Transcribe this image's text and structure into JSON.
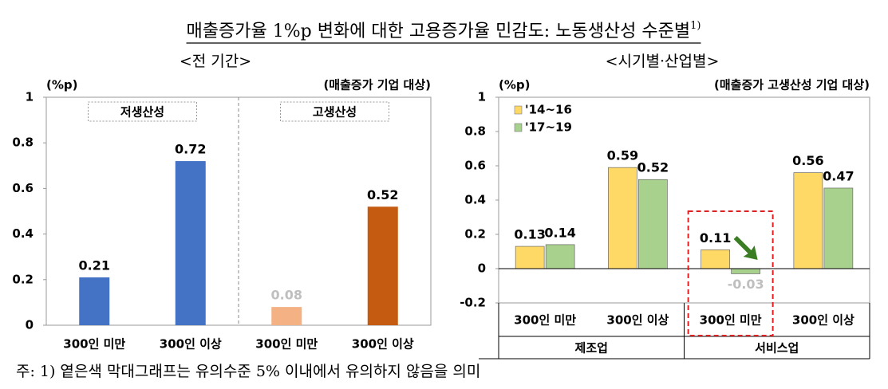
{
  "title": "매출증가율 1%p 변화에 대한 고용증가율 민감도: 노동생산성 수준별",
  "title_note": "1)",
  "footnote": "주: 1) 옅은색 막대그래프는 유의수준 5% 이내에서 유의하지 않음을 의미",
  "chart_data": [
    {
      "type": "bar",
      "subtitle": "<전 기간>",
      "ylabel": "(%p)",
      "note": "(매출증가 기업 대상)",
      "groups": [
        "저생산성",
        "고생산성"
      ],
      "categories": [
        "300인 미만",
        "300인 이상",
        "300인 미만",
        "300인 이상"
      ],
      "values": [
        0.21,
        0.72,
        0.08,
        0.52
      ],
      "colors": [
        "#4472c4",
        "#4472c4",
        "#f4b183",
        "#c55a11"
      ],
      "label_colors": [
        "#000000",
        "#000000",
        "#bfbfbf",
        "#000000"
      ],
      "ylim": [
        0,
        1
      ],
      "yticks": [
        0,
        0.2,
        0.4,
        0.6,
        0.8,
        1
      ]
    },
    {
      "type": "grouped_bar",
      "subtitle": "<시기별·산업별>",
      "ylabel": "(%p)",
      "note": "(매출증가 고생산성 기업 대상)",
      "groups": [
        "제조업",
        "서비스업"
      ],
      "categories": [
        "300인 미만",
        "300인 이상",
        "300인 미만",
        "300인 이상"
      ],
      "series": [
        {
          "name": "'14~16",
          "color": "#ffd966",
          "values": [
            0.13,
            0.59,
            0.11,
            0.56
          ],
          "label_colors": [
            "#000000",
            "#000000",
            "#000000",
            "#000000"
          ]
        },
        {
          "name": "'17~19",
          "color": "#a9d18e",
          "values": [
            0.14,
            0.52,
            -0.03,
            0.47
          ],
          "label_colors": [
            "#000000",
            "#000000",
            "#bfbfbf",
            "#000000"
          ]
        }
      ],
      "legend": "upper left",
      "ylim": [
        -0.2,
        1
      ],
      "yticks": [
        -0.2,
        0,
        0.2,
        0.4,
        0.6,
        0.8,
        1
      ]
    }
  ]
}
